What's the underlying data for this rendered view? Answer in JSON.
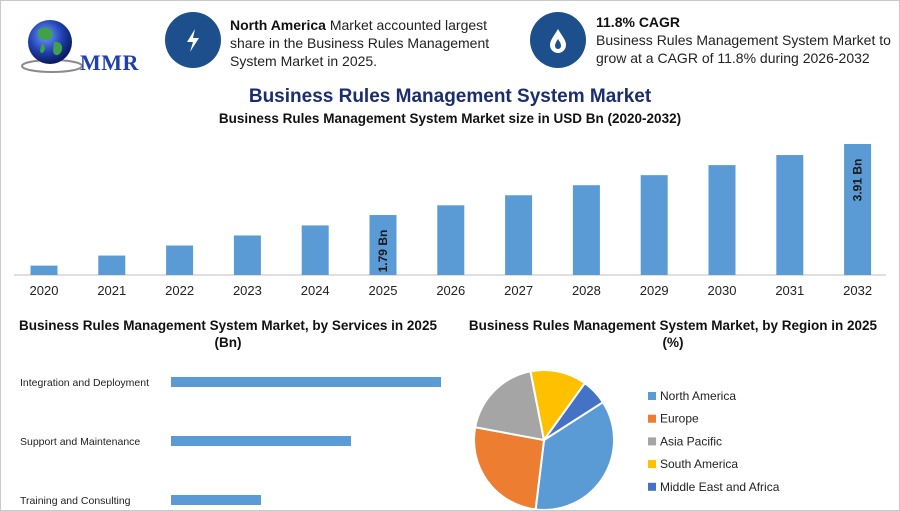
{
  "brand": {
    "logo_text": "MMR"
  },
  "header": {
    "stat1": {
      "icon": "lightning-icon",
      "bold": "North America",
      "text": " Market accounted largest share in the Business Rules Management System Market in 2025."
    },
    "stat2": {
      "icon": "flame-drop-icon",
      "bold": "11.8% CAGR",
      "text": "Business Rules Management System Market to grow at a CAGR of 11.8% during 2026-2032"
    }
  },
  "titles": {
    "main": "Business Rules Management System Market",
    "subtitle": "Business Rules Management System Market size in USD Bn (2020-2032)",
    "services": "Business Rules Management System Market, by Services in 2025 (Bn)",
    "region": "Business Rules Management System Market, by Region in 2025 (%)"
  },
  "colors": {
    "bar": "#5b9bd5",
    "badge": "#1d4f8c",
    "title": "#1a2e6e",
    "north_america": "#5b9bd5",
    "europe": "#ed7d31",
    "asia_pacific": "#a5a5a5",
    "south_america": "#ffc000",
    "mea": "#4472c4"
  },
  "chart_data": [
    {
      "type": "bar",
      "title": "Business Rules Management System Market size in USD Bn (2020-2032)",
      "categories": [
        "2020",
        "2021",
        "2022",
        "2023",
        "2024",
        "2025",
        "2026",
        "2027",
        "2028",
        "2029",
        "2030",
        "2031",
        "2032"
      ],
      "values": [
        0.28,
        0.58,
        0.88,
        1.18,
        1.48,
        1.79,
        2.08,
        2.38,
        2.68,
        2.98,
        3.28,
        3.58,
        3.91
      ],
      "data_labels": {
        "2025": "1.79 Bn",
        "2032": "3.91 Bn"
      },
      "ylim": [
        0,
        3.91
      ],
      "grid": false
    },
    {
      "type": "bar",
      "orientation": "horizontal",
      "title": "Business Rules Management System Market, by Services in 2025 (Bn)",
      "categories": [
        "Integration and Deployment",
        "Support and Maintenance",
        "Training and Consulting"
      ],
      "values": [
        0.9,
        0.6,
        0.3
      ],
      "xlim": [
        0,
        0.9
      ],
      "grid": false
    },
    {
      "type": "pie",
      "title": "Business Rules Management System Market, by Region in 2025 (%)",
      "categories": [
        "North America",
        "Europe",
        "Asia Pacific",
        "South America",
        "Middle East and Africa"
      ],
      "values": [
        36,
        26,
        19,
        13,
        6
      ],
      "colors": [
        "#5b9bd5",
        "#ed7d31",
        "#a5a5a5",
        "#ffc000",
        "#4472c4"
      ],
      "legend": "right"
    }
  ]
}
